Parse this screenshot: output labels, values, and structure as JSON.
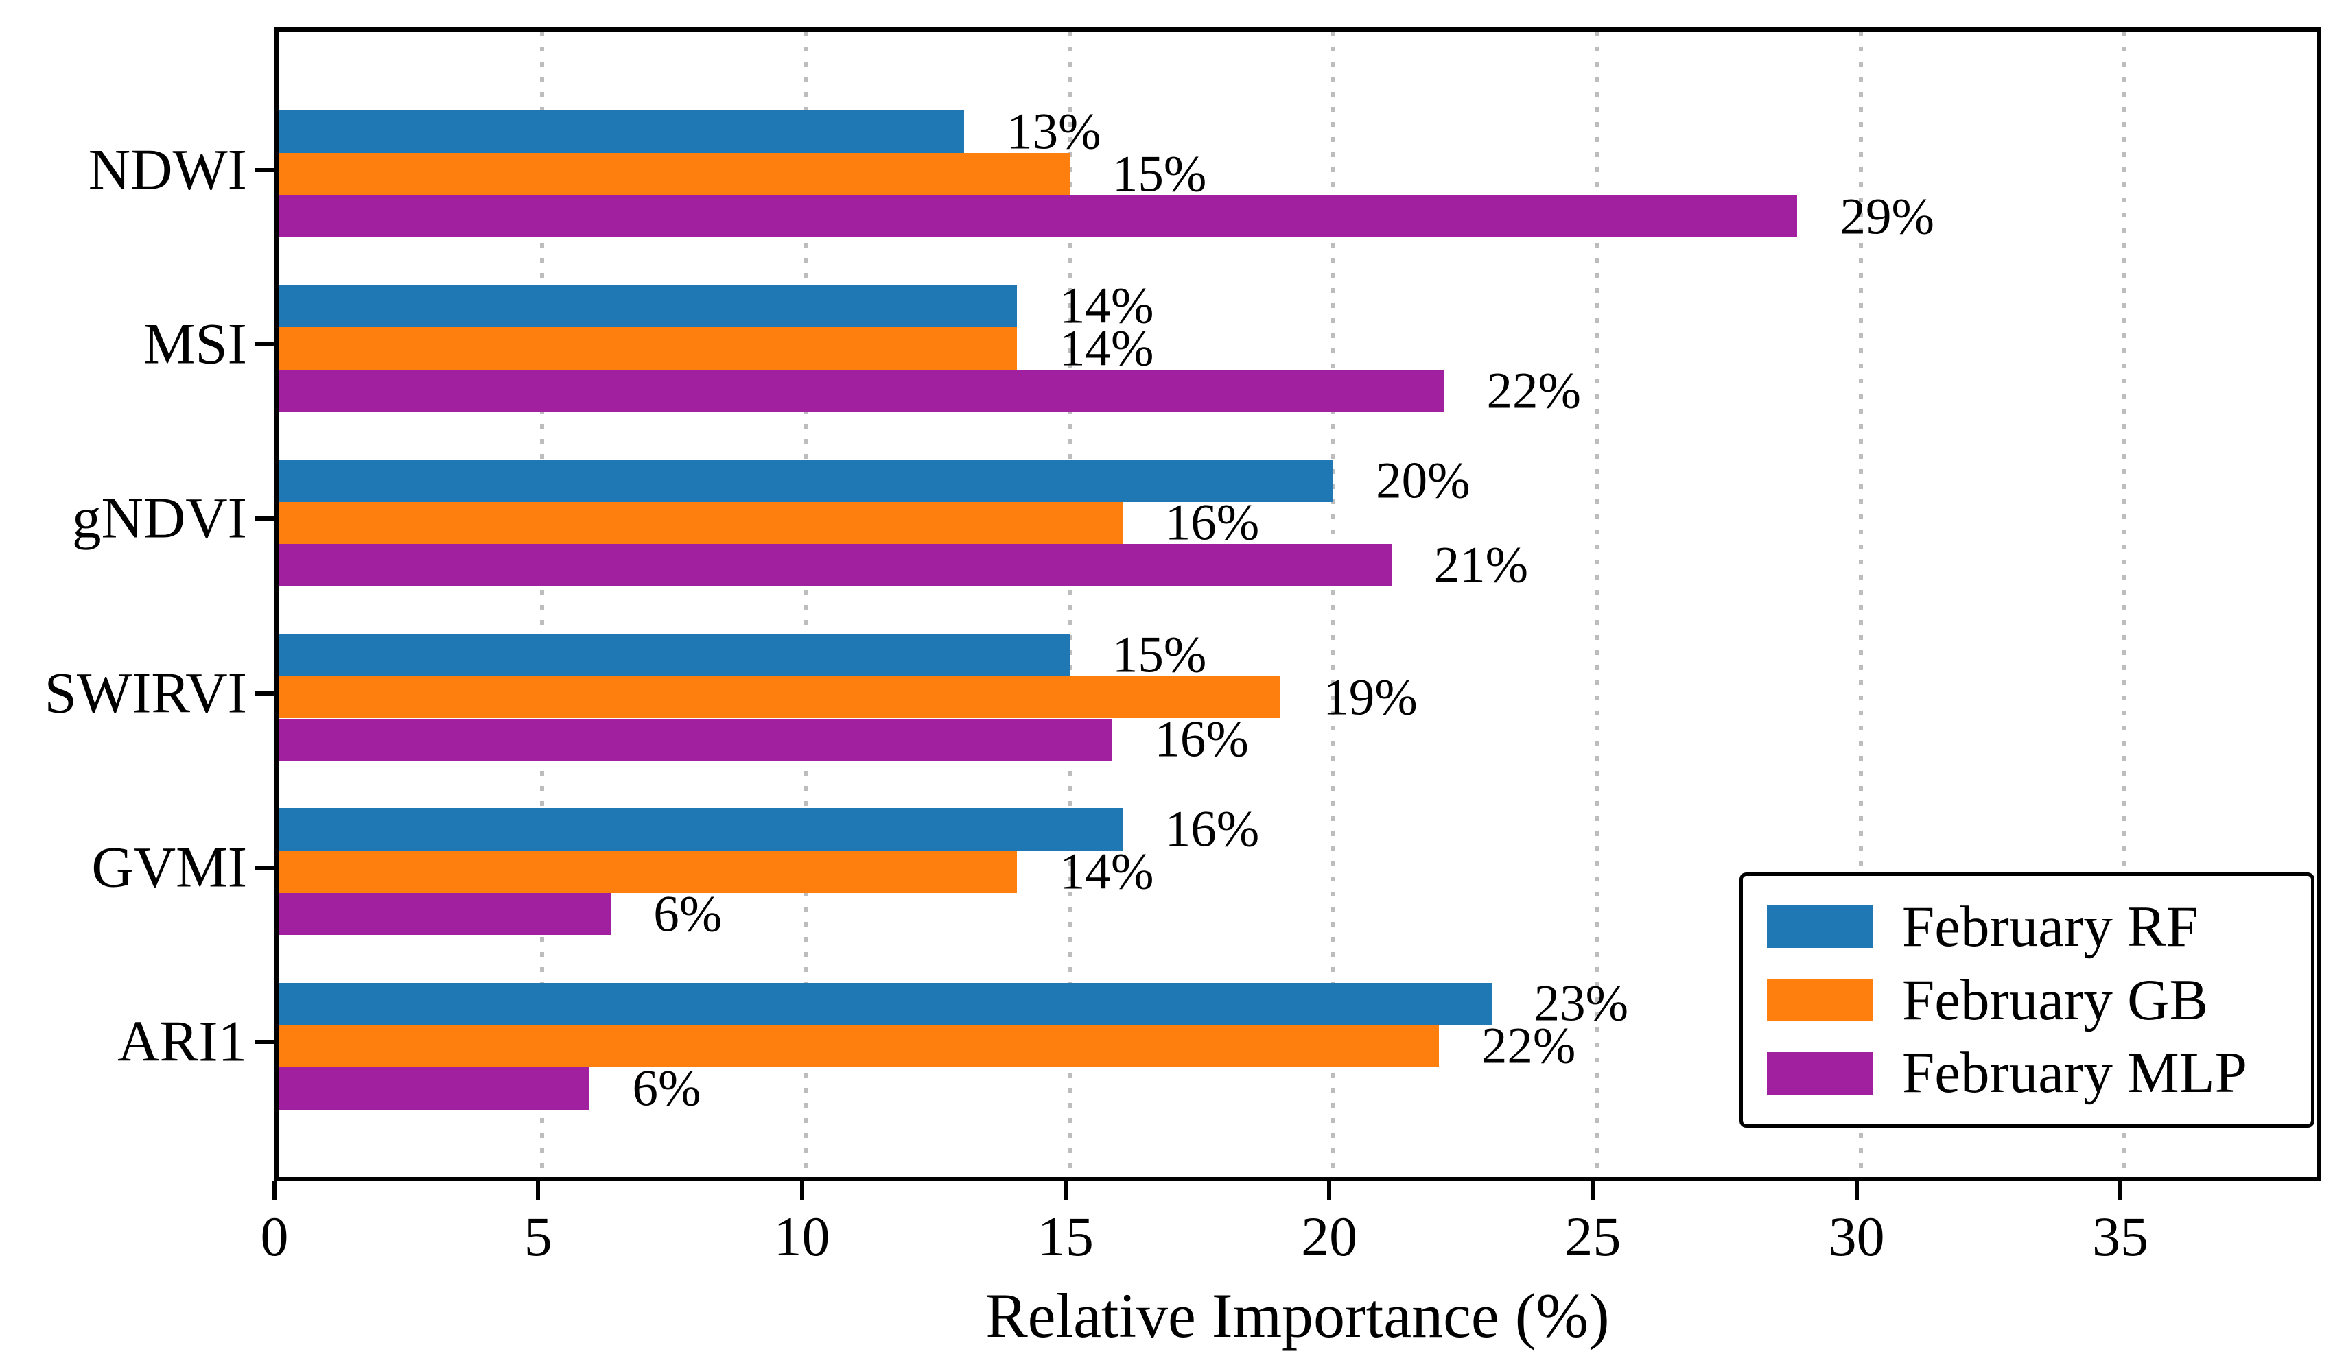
{
  "chart_data": {
    "type": "bar",
    "orientation": "horizontal",
    "title": "",
    "xlabel": "Relative Importance (%)",
    "ylabel": "",
    "xlim": [
      0,
      38.8
    ],
    "x_ticks": [
      0,
      5,
      10,
      15,
      20,
      25,
      30,
      35
    ],
    "grid": "vertical-dotted",
    "grid_color": "#bdbdbd",
    "legend_position": "lower right",
    "categories": [
      "NDWI",
      "MSI",
      "gNDVI",
      "SWIRVI",
      "GVMI",
      "ARI1"
    ],
    "series": [
      {
        "name": "February RF",
        "color": "#1f77b4",
        "values": [
          13,
          14,
          20,
          15,
          16,
          23
        ],
        "labels": [
          "13%",
          "14%",
          "20%",
          "15%",
          "16%",
          "23%"
        ]
      },
      {
        "name": "February GB",
        "color": "#ff7f0e",
        "values": [
          15,
          14,
          16,
          19,
          14,
          22
        ],
        "labels": [
          "15%",
          "14%",
          "16%",
          "19%",
          "14%",
          "22%"
        ]
      },
      {
        "name": "February MLP",
        "color": "#a020a0",
        "values": [
          28.8,
          22.1,
          21.1,
          15.8,
          6.3,
          5.9
        ],
        "labels": [
          "29%",
          "22%",
          "21%",
          "16%",
          "6%",
          "6%"
        ]
      }
    ]
  }
}
